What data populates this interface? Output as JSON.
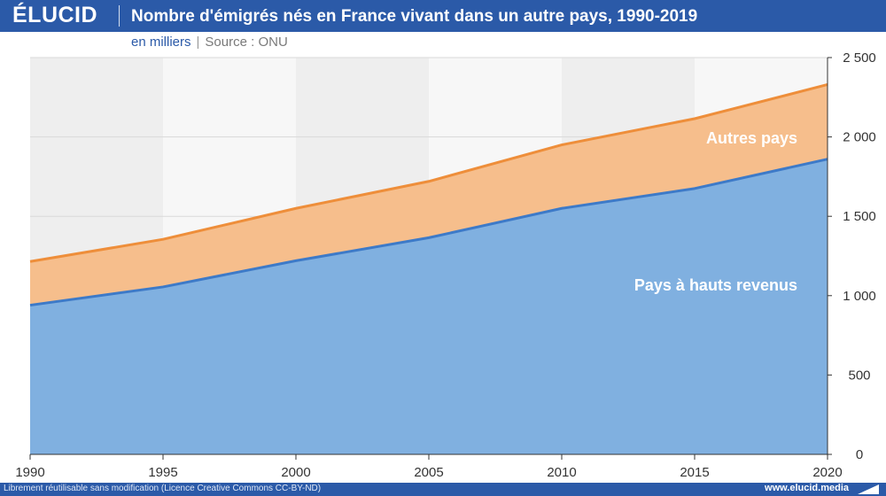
{
  "header": {
    "logo": "ÉLUCID",
    "title": "Nombre d'émigrés nés en France vivant dans un autre pays, 1990-2019",
    "unit": "en milliers",
    "separator": "|",
    "source": "Source : ONU"
  },
  "footer": {
    "license": "Librement réutilisable sans modification (Licence Creative Commons CC-BY-ND)",
    "site": "www.elucid.media"
  },
  "colors": {
    "brand": "#2b5aa8",
    "blue_fill": "#80b0e0",
    "blue_line": "#3d7ac8",
    "orange_fill": "#f6be8c",
    "orange_line": "#ee8e3a",
    "band_dark": "#eeeeee",
    "band_light": "#f7f7f7",
    "label_text": "#ffffff"
  },
  "chart_data": {
    "type": "area",
    "stacked": true,
    "x": [
      1990,
      1995,
      2000,
      2005,
      2010,
      2015,
      2020
    ],
    "x_tick_labels": [
      "1990",
      "1995",
      "2000",
      "2005",
      "2010",
      "2015",
      "2020"
    ],
    "y_tick_values": [
      0,
      500,
      1000,
      1500,
      2000,
      2500
    ],
    "y_tick_labels": [
      "0",
      "500",
      "1 000",
      "1 500",
      "2 000",
      "2 500"
    ],
    "ylim": [
      0,
      2500
    ],
    "xlim": [
      1990,
      2020
    ],
    "y_axis_position": "right",
    "title": "Nombre d'émigrés nés en France vivant dans un autre pays, 1990-2019",
    "ylabel": "en milliers",
    "series": [
      {
        "name": "Pays à hauts revenus",
        "values": [
          940,
          1055,
          1220,
          1365,
          1550,
          1675,
          1860
        ]
      },
      {
        "name": "Autres pays",
        "values": [
          275,
          300,
          330,
          355,
          400,
          440,
          470
        ]
      }
    ],
    "series_labels": [
      "Pays à hauts revenus",
      "Autres pays"
    ]
  }
}
